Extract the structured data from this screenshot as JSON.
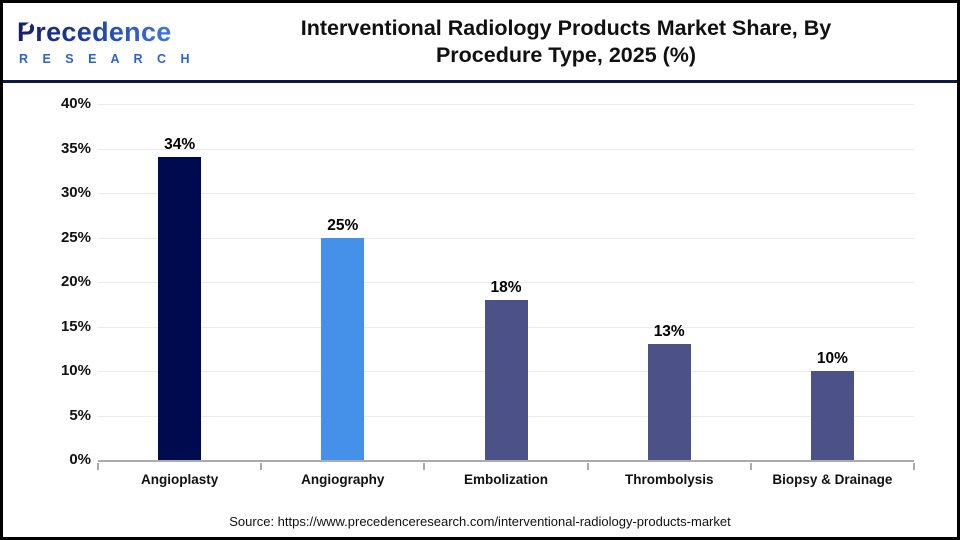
{
  "header": {
    "logo": {
      "name": "Precedence",
      "sub": "R E S E A R C H"
    },
    "title_line1": "Interventional Radiology Products Market Share, By",
    "title_line2": "Procedure Type, 2025 (%)"
  },
  "footer": {
    "source": "Source: https://www.precedenceresearch.com/interventional-radiology-products-market"
  },
  "colors": {
    "navy_bar": "#000a4e",
    "bright_blue_bar": "#4590e8",
    "slate_bar": "#4c5187",
    "header_divider": "#0e1845",
    "gridline": "#eaeaef",
    "axis": "#ababab",
    "logo_gradient_start": "#131f63",
    "logo_gradient_end": "#3f77dd",
    "logo_research_text": "#2e62cc"
  },
  "chart_data": {
    "type": "bar",
    "title": "Interventional Radiology Products Market Share, By Procedure Type, 2025 (%)",
    "categories": [
      "Angioplasty",
      "Angiography",
      "Embolization",
      "Thrombolysis",
      "Biopsy & Drainage"
    ],
    "values": [
      34,
      25,
      18,
      13,
      10
    ],
    "value_labels": [
      "34%",
      "25%",
      "18%",
      "13%",
      "10%"
    ],
    "bar_colors": [
      "#000a4e",
      "#4590e8",
      "#4c5187",
      "#4c5187",
      "#4c5187"
    ],
    "ylim": [
      0,
      40
    ],
    "ytick_labels": [
      "0%",
      "5%",
      "10%",
      "15%",
      "20%",
      "25%",
      "30%",
      "35%",
      "40%"
    ],
    "grid": true,
    "legend": false,
    "xlabel": "",
    "ylabel": ""
  }
}
